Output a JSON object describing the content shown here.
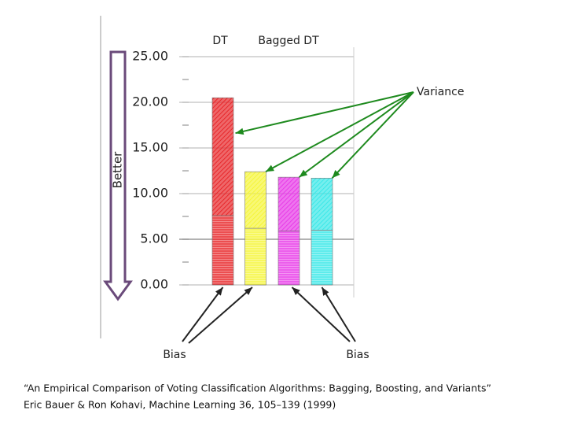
{
  "chart_data": {
    "type": "stacked_bar",
    "categories": [
      "DT",
      "Bagged DT",
      null,
      null
    ],
    "bar_colors": [
      "#e8262a",
      "#f5f53a",
      "#e83ae8",
      "#3ae8e8"
    ],
    "series": [
      {
        "values": [
          7.6,
          6.2,
          5.9,
          6.0
        ]
      },
      {
        "values": [
          12.9,
          6.2,
          5.9,
          5.7
        ]
      }
    ],
    "ylim": [
      0,
      25
    ],
    "yticks": [
      {
        "value": 0,
        "label": "0.00"
      },
      {
        "value": 5,
        "label": "5.00"
      },
      {
        "value": 10,
        "label": "10.00"
      },
      {
        "value": 15,
        "label": "15.00"
      },
      {
        "value": 20,
        "label": "20.00"
      },
      {
        "value": 25,
        "label": "25.00"
      }
    ],
    "grid": true,
    "direction_label": "Better",
    "variance_label": "Variance",
    "bias_labels": [
      "Bias",
      "Bias"
    ],
    "citation": [
      "“An Empirical Comparison of Voting Classification Algorithms: Bagging, Boosting, and Variants”",
      "Eric Bauer & Ron Kohavi, Machine Learning 36, 105–139 (1999)"
    ]
  }
}
